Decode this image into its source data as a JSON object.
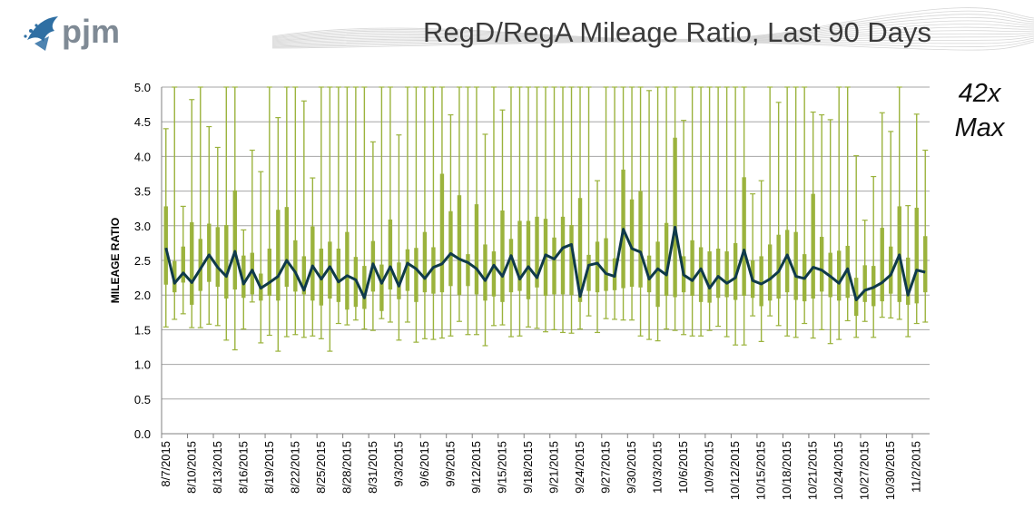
{
  "header": {
    "logo_text": "pjm",
    "title": "RegD/RegA Mileage Ratio, Last 90 Days"
  },
  "annotation": {
    "line1": "42x",
    "line2": "Max"
  },
  "colors": {
    "avg_line": "#0f3a4a",
    "range": "#9bb33d",
    "logo": "#2f6fa3",
    "grid": "#a6a6a6"
  },
  "chart_data": {
    "type": "line",
    "title": "RegD/RegA Mileage Ratio, Last 90 Days",
    "xlabel": "",
    "ylabel": "MILEAGE RATIO",
    "ylim": [
      0,
      5
    ],
    "yticks": [
      "0.0",
      "0.5",
      "1.0",
      "1.5",
      "2.0",
      "2.5",
      "3.0",
      "3.5",
      "4.0",
      "4.5",
      "5.0"
    ],
    "grid": true,
    "legend": "none",
    "tick_labels": [
      "8/7/2015",
      "8/10/2015",
      "8/13/2015",
      "8/16/2015",
      "8/19/2015",
      "8/22/2015",
      "8/25/2015",
      "8/28/2015",
      "8/31/2015",
      "9/3/2015",
      "9/6/2015",
      "9/9/2015",
      "9/12/2015",
      "9/15/2015",
      "9/18/2015",
      "9/21/2015",
      "9/24/2015",
      "9/27/2015",
      "9/30/2015",
      "10/3/2015",
      "10/6/2015",
      "10/9/2015",
      "10/12/2015",
      "10/15/2015",
      "10/18/2015",
      "10/21/2015",
      "10/24/2015",
      "10/27/2015",
      "10/30/2015",
      "11/2/2015"
    ],
    "tick_every": 3,
    "series": [
      {
        "kind": "average",
        "values": [
          2.68,
          2.17,
          2.32,
          2.18,
          2.38,
          2.58,
          2.4,
          2.27,
          2.63,
          2.16,
          2.36,
          2.1,
          2.18,
          2.27,
          2.5,
          2.33,
          2.07,
          2.42,
          2.23,
          2.41,
          2.19,
          2.28,
          2.22,
          1.96,
          2.45,
          2.17,
          2.41,
          2.13,
          2.46,
          2.38,
          2.24,
          2.4,
          2.45,
          2.6,
          2.52,
          2.47,
          2.38,
          2.21,
          2.43,
          2.27,
          2.57,
          2.23,
          2.41,
          2.25,
          2.58,
          2.52,
          2.68,
          2.73,
          1.98,
          2.43,
          2.46,
          2.31,
          2.27,
          2.95,
          2.67,
          2.62,
          2.23,
          2.38,
          2.29,
          2.98,
          2.29,
          2.21,
          2.38,
          2.1,
          2.27,
          2.17,
          2.25,
          2.65,
          2.21,
          2.16,
          2.23,
          2.34,
          2.58,
          2.27,
          2.24,
          2.4,
          2.36,
          2.27,
          2.17,
          2.38,
          1.93,
          2.07,
          2.11,
          2.18,
          2.29,
          2.58,
          2.0,
          2.36,
          2.33
        ],
        "low": [
          1.54,
          1.65,
          1.73,
          1.53,
          1.53,
          1.58,
          1.56,
          1.35,
          1.21,
          1.51,
          1.9,
          1.31,
          1.42,
          1.19,
          1.4,
          1.43,
          1.39,
          1.41,
          1.37,
          1.19,
          1.59,
          1.57,
          1.64,
          1.51,
          1.49,
          1.66,
          1.61,
          1.35,
          1.61,
          1.32,
          1.37,
          1.36,
          1.38,
          1.41,
          1.62,
          1.43,
          1.43,
          1.27,
          1.56,
          1.57,
          1.4,
          1.41,
          1.54,
          1.52,
          1.47,
          1.5,
          1.46,
          1.45,
          1.51,
          1.7,
          1.46,
          1.66,
          1.65,
          1.64,
          1.64,
          1.41,
          1.36,
          1.34,
          1.51,
          1.49,
          1.43,
          1.41,
          1.41,
          1.49,
          1.55,
          1.4,
          1.28,
          1.28,
          1.7,
          1.33,
          1.7,
          1.56,
          1.41,
          1.39,
          1.59,
          1.38,
          1.5,
          1.3,
          1.36,
          1.63,
          1.39,
          1.62,
          1.39,
          1.68,
          1.67,
          1.65,
          1.4,
          1.59,
          1.61
        ],
        "q1": [
          2.15,
          2.04,
          2.18,
          1.86,
          2.06,
          2.19,
          2.12,
          1.95,
          2.08,
          1.96,
          2.01,
          1.92,
          1.99,
          1.92,
          2.12,
          2.05,
          2.01,
          1.92,
          1.85,
          1.95,
          1.9,
          1.79,
          1.83,
          1.8,
          2.05,
          1.77,
          2.08,
          1.94,
          2.06,
          1.9,
          2.04,
          2.02,
          2.04,
          2.13,
          2.0,
          2.13,
          2.01,
          1.92,
          1.98,
          1.9,
          2.04,
          2.06,
          1.94,
          2.11,
          1.99,
          2.01,
          2.01,
          2.0,
          1.9,
          2.06,
          2.04,
          2.06,
          2.07,
          2.1,
          2.12,
          2.11,
          2.04,
          1.83,
          1.99,
          1.97,
          2.04,
          1.99,
          1.9,
          1.89,
          1.96,
          1.97,
          1.93,
          1.99,
          1.96,
          1.84,
          1.92,
          1.95,
          2.04,
          1.93,
          1.91,
          1.95,
          2.05,
          1.97,
          1.92,
          1.96,
          1.7,
          1.9,
          1.84,
          1.91,
          2.02,
          1.9,
          1.86,
          1.88,
          2.04
        ],
        "q3": [
          3.28,
          2.49,
          2.7,
          3.05,
          2.81,
          3.03,
          2.98,
          3.01,
          3.51,
          2.57,
          2.61,
          2.31,
          2.67,
          3.23,
          3.27,
          2.79,
          2.56,
          2.99,
          2.67,
          2.77,
          2.67,
          2.91,
          2.55,
          2.42,
          2.78,
          2.44,
          3.09,
          2.47,
          2.66,
          2.68,
          2.91,
          2.69,
          3.75,
          3.21,
          3.44,
          2.59,
          3.31,
          2.73,
          2.63,
          3.22,
          2.81,
          3.07,
          3.07,
          3.13,
          3.1,
          2.83,
          3.13,
          3.01,
          3.4,
          2.58,
          2.77,
          2.82,
          2.53,
          3.81,
          3.38,
          3.5,
          2.57,
          2.77,
          3.04,
          4.27,
          2.56,
          2.79,
          2.69,
          2.63,
          2.67,
          2.63,
          2.75,
          3.7,
          2.5,
          2.56,
          2.73,
          2.87,
          2.94,
          2.91,
          2.59,
          3.46,
          2.84,
          2.61,
          2.64,
          2.71,
          2.25,
          2.43,
          2.42,
          2.97,
          2.7,
          3.28,
          2.54,
          3.26,
          2.85
        ],
        "high": [
          4.4,
          5.0,
          3.28,
          4.82,
          5.0,
          4.43,
          4.13,
          5.0,
          5.0,
          2.94,
          4.09,
          3.78,
          5.0,
          4.56,
          5.0,
          5.0,
          4.8,
          3.69,
          5.0,
          5.0,
          5.0,
          5.0,
          5.0,
          5.0,
          4.21,
          5.0,
          5.0,
          4.31,
          5.0,
          5.0,
          5.0,
          5.0,
          5.0,
          4.6,
          5.0,
          5.0,
          5.0,
          4.32,
          5.0,
          4.67,
          5.0,
          5.0,
          5.0,
          5.0,
          5.0,
          5.0,
          5.0,
          5.0,
          5.0,
          5.0,
          3.65,
          5.0,
          5.0,
          5.0,
          5.0,
          5.0,
          4.95,
          5.0,
          5.0,
          5.0,
          4.52,
          5.0,
          5.0,
          5.0,
          5.0,
          5.0,
          5.0,
          5.0,
          3.46,
          3.65,
          5.0,
          4.78,
          5.0,
          5.0,
          5.0,
          4.64,
          4.6,
          4.53,
          5.0,
          5.0,
          4.01,
          3.08,
          3.71,
          4.63,
          4.36,
          5.0,
          3.29,
          4.61,
          4.09
        ]
      }
    ]
  }
}
